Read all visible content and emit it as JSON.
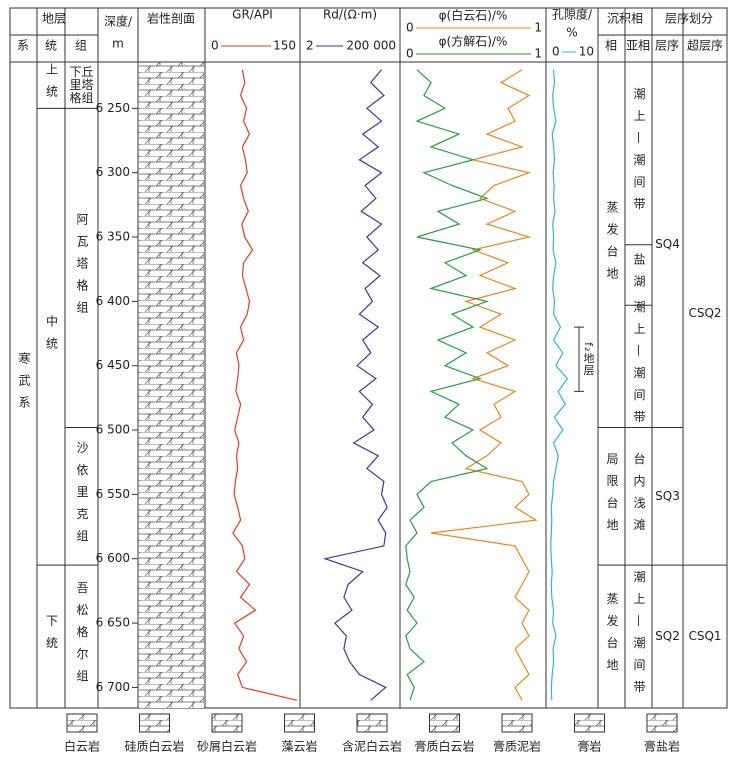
{
  "chart_data": {
    "type": "well-log",
    "header": {
      "strata": "地层",
      "system": "系",
      "series": "统",
      "formation": "组",
      "depth": "深度/",
      "depth_unit": "m",
      "lithology": "岩性剖面",
      "facies": "沉积相",
      "facies_main": "相",
      "facies_sub": "亚相",
      "sequence": "层序划分",
      "sequence_main": "层序",
      "sequence_super": "超层序"
    },
    "ylim": [
      6214,
      6716
    ],
    "yticks": [
      {
        "value": 6250,
        "label": "6 250"
      },
      {
        "value": 6300,
        "label": "6 300"
      },
      {
        "value": 6350,
        "label": "6 350"
      },
      {
        "value": 6400,
        "label": "6 400"
      },
      {
        "value": 6450,
        "label": "6 450"
      },
      {
        "value": 6500,
        "label": "6 500"
      },
      {
        "value": 6550,
        "label": "6 550"
      },
      {
        "value": 6600,
        "label": "6 600"
      },
      {
        "value": 6650,
        "label": "6 650"
      },
      {
        "value": 6700,
        "label": "6 700"
      }
    ],
    "depths": [
      6220,
      6230,
      6240,
      6250,
      6260,
      6270,
      6280,
      6290,
      6300,
      6310,
      6320,
      6330,
      6340,
      6350,
      6360,
      6370,
      6380,
      6390,
      6400,
      6410,
      6420,
      6430,
      6440,
      6450,
      6460,
      6470,
      6480,
      6490,
      6500,
      6510,
      6520,
      6530,
      6540,
      6550,
      6560,
      6570,
      6580,
      6590,
      6600,
      6610,
      6620,
      6630,
      6640,
      6650,
      6660,
      6670,
      6680,
      6690,
      6700,
      6710
    ],
    "tracks": [
      {
        "series": [
          {
            "name": "GR/API",
            "color": "#d9412b",
            "values": [
              58,
              62,
              55,
              65,
              60,
              70,
              58,
              63,
              66,
              55,
              60,
              68,
              57,
              62,
              75,
              60,
              58,
              64,
              70,
              66,
              55,
              60,
              48,
              52,
              50,
              47,
              55,
              50,
              45,
              52,
              48,
              50,
              46,
              44,
              50,
              55,
              42,
              58,
              62,
              48,
              70,
              55,
              80,
              45,
              60,
              52,
              65,
              50,
              58,
              150
            ]
          }
        ],
        "xlim": [
          0,
          150
        ],
        "xticks": [
          0,
          150
        ],
        "log": false
      },
      {
        "series": [
          {
            "name": "Rd/(Ω·m)",
            "color": "#3a3a9a",
            "values": [
              30000,
              8000,
              40000,
              5000,
              30000,
              3000,
              20000,
              2000,
              30000,
              4000,
              15000,
              2500,
              30000,
              5000,
              20000,
              3000,
              25000,
              4000,
              10000,
              2000,
              20000,
              3000,
              8000,
              1500,
              15000,
              2000,
              10000,
              3000,
              12000,
              1000,
              20000,
              5000,
              40000,
              30000,
              60000,
              20000,
              50000,
              40000,
              30,
              3000,
              500,
              300,
              800,
              100,
              400,
              300,
              600,
              2000,
              50000,
              8000
            ]
          }
        ],
        "xlim": [
          2,
          200000
        ],
        "xticks": [
          2,
          {
            "value": 200000,
            "label": "200 000"
          }
        ],
        "log": true
      },
      {
        "series": [
          {
            "name": "φ(白云石)/%",
            "color": "#e8862a",
            "values": [
              0.85,
              0.7,
              0.9,
              0.75,
              0.8,
              0.6,
              0.85,
              0.5,
              0.9,
              0.65,
              0.55,
              0.8,
              0.6,
              0.9,
              0.5,
              0.75,
              0.55,
              0.8,
              0.45,
              0.7,
              0.55,
              0.8,
              0.6,
              0.75,
              0.5,
              0.8,
              0.65,
              0.7,
              0.55,
              0.7,
              0.6,
              0.45,
              0.85,
              0.9,
              0.8,
              0.95,
              0.2,
              0.8,
              0.85,
              0.9,
              0.85,
              0.8,
              0.9,
              0.85,
              0.9,
              0.8,
              0.85,
              0.9,
              0.8,
              0.85
            ]
          },
          {
            "name": "φ(方解石)/%",
            "color": "#2e9a4a",
            "values": [
              0.1,
              0.2,
              0.15,
              0.3,
              0.1,
              0.4,
              0.2,
              0.5,
              0.15,
              0.35,
              0.6,
              0.25,
              0.4,
              0.1,
              0.55,
              0.3,
              0.45,
              0.2,
              0.6,
              0.35,
              0.5,
              0.25,
              0.45,
              0.3,
              0.55,
              0.2,
              0.4,
              0.3,
              0.5,
              0.35,
              0.45,
              0.6,
              0.2,
              0.1,
              0.15,
              0.05,
              0.1,
              0.02,
              0.03,
              0.05,
              0.02,
              0.08,
              0.03,
              0.1,
              0.02,
              0.05,
              0.15,
              0.03,
              0.08,
              0.05
            ]
          }
        ],
        "xlim": [
          0,
          1
        ],
        "xticks": [
          0,
          1
        ],
        "log": false
      },
      {
        "series": [
          {
            "name": "孔隙度/",
            "unit": "%",
            "color": "#3aaee0",
            "values": [
              1,
              1.2,
              0.8,
              1,
              1.5,
              0.7,
              1,
              1.2,
              0.9,
              1.1,
              1,
              1.3,
              0.8,
              1,
              0.9,
              1.5,
              1,
              0.8,
              1.2,
              1,
              2.5,
              1,
              3,
              1.5,
              4,
              2,
              3.5,
              1.2,
              3,
              1,
              2,
              1.5,
              1,
              0.8,
              0.5,
              0.6,
              0.5,
              0.4,
              0.5,
              0.7,
              0.5,
              0.6,
              1,
              0.8,
              1.5,
              0.9,
              1,
              0.7,
              0.5,
              0.6
            ]
          }
        ],
        "xlim": [
          0,
          10
        ],
        "xticks": [
          0,
          10
        ],
        "log": false
      }
    ],
    "annotation": {
      "text": "f₂地层",
      "top": 6420,
      "base": 6470
    },
    "columns": [
      {
        "cells": [
          {
            "label": "寒武系",
            "top": 6214,
            "base": 6716
          }
        ]
      },
      {
        "cells": [
          {
            "label": "上统",
            "top": 6214,
            "base": 6250
          },
          {
            "label": "中统",
            "top": 6250,
            "base": 6605
          },
          {
            "label": "下统",
            "top": 6605,
            "base": 6716
          }
        ]
      },
      {
        "cells": [
          {
            "label": "下丘里塔格组",
            "top": 6214,
            "base": 6250
          },
          {
            "label": "阿瓦塔格组",
            "top": 6250,
            "base": 6498
          },
          {
            "label": "沙依里克组",
            "top": 6498,
            "base": 6605
          },
          {
            "label": "吾松格尔组",
            "top": 6605,
            "base": 6716
          }
        ]
      },
      {
        "cells": [
          {
            "label": "蒸发台地",
            "top": 6214,
            "base": 6498
          },
          {
            "label": "局限台地",
            "top": 6498,
            "base": 6605
          },
          {
            "label": "蒸发台地",
            "top": 6605,
            "base": 6716
          }
        ]
      },
      {
        "cells": [
          {
            "label": "潮上—潮间带",
            "top": 6214,
            "base": 6356
          },
          {
            "label": "盐湖",
            "top": 6356,
            "base": 6403
          },
          {
            "label": "潮上—潮间带",
            "top": 6403,
            "base": 6498
          },
          {
            "label": "台内浅滩",
            "top": 6498,
            "base": 6605
          },
          {
            "label": "潮上—潮间带",
            "top": 6605,
            "base": 6716
          }
        ]
      },
      {
        "cells": [
          {
            "label": "SQ4",
            "top": 6214,
            "base": 6498
          },
          {
            "label": "SQ3",
            "top": 6498,
            "base": 6605
          },
          {
            "label": "SQ2",
            "top": 6605,
            "base": 6716
          }
        ]
      },
      {
        "cells": [
          {
            "label": "CSQ2",
            "top": 6214,
            "base": 6605
          },
          {
            "label": "CSQ1",
            "top": 6605,
            "base": 6716
          }
        ]
      }
    ],
    "legend": [
      "白云岩",
      "硅质白云岩",
      "砂屑白云岩",
      "藻云岩",
      "含泥白云岩",
      "膏质白云岩",
      "膏质泥岩",
      "膏岩",
      "膏盐岩"
    ]
  }
}
